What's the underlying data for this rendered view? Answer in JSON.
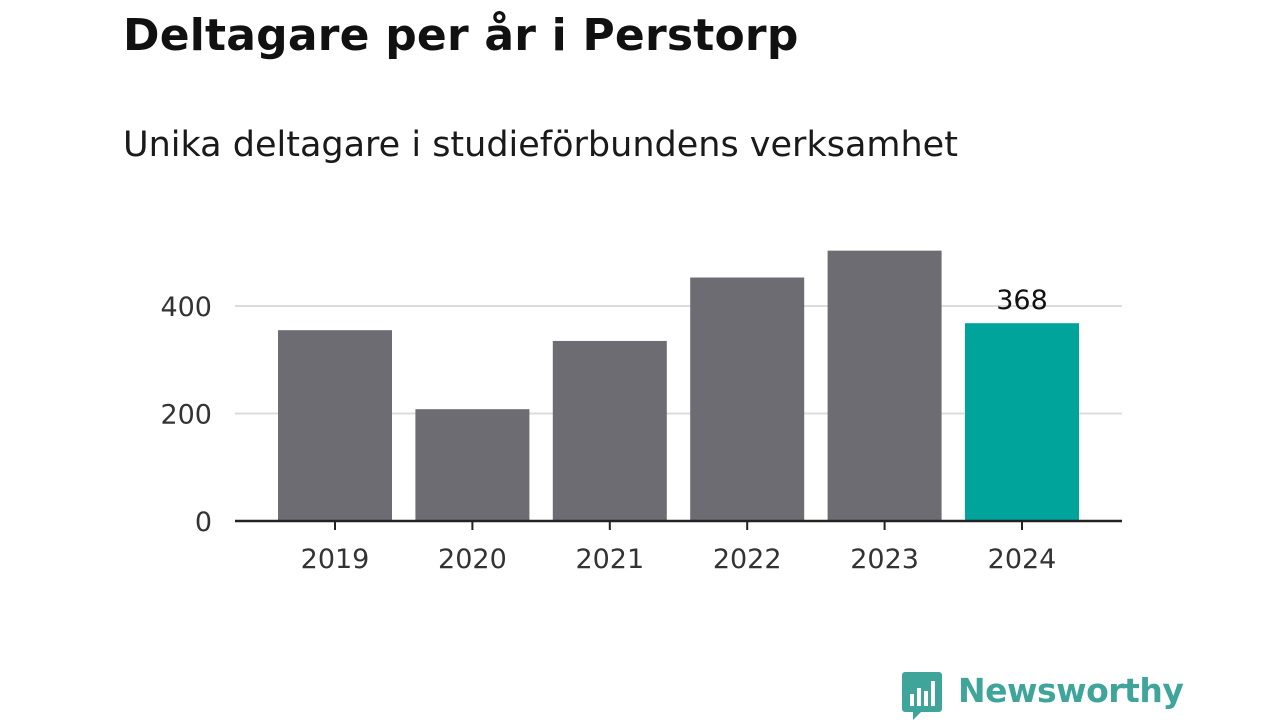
{
  "header": {
    "title": "Deltagare per år i Perstorp",
    "subtitle": "Unika deltagare i studieförbundens verksamhet"
  },
  "branding": {
    "name": "Newsworthy",
    "logo_icon": "bar-chart-speech-bubble-icon",
    "color": "#3fa59b"
  },
  "colors": {
    "bar_default": "#6d6c72",
    "bar_highlight": "#00a49a",
    "gridline": "#dcdcdc",
    "axis": "#222222"
  },
  "chart_data": {
    "type": "bar",
    "categories": [
      "2019",
      "2020",
      "2021",
      "2022",
      "2023",
      "2024"
    ],
    "values": [
      355,
      208,
      335,
      453,
      503,
      368
    ],
    "highlight_index": 5,
    "data_labels": [
      null,
      null,
      null,
      null,
      null,
      "368"
    ],
    "yticks": [
      0,
      200,
      400
    ],
    "ylim": [
      0,
      540
    ],
    "grid": true,
    "legend": "none",
    "xlabel": "",
    "ylabel": ""
  }
}
